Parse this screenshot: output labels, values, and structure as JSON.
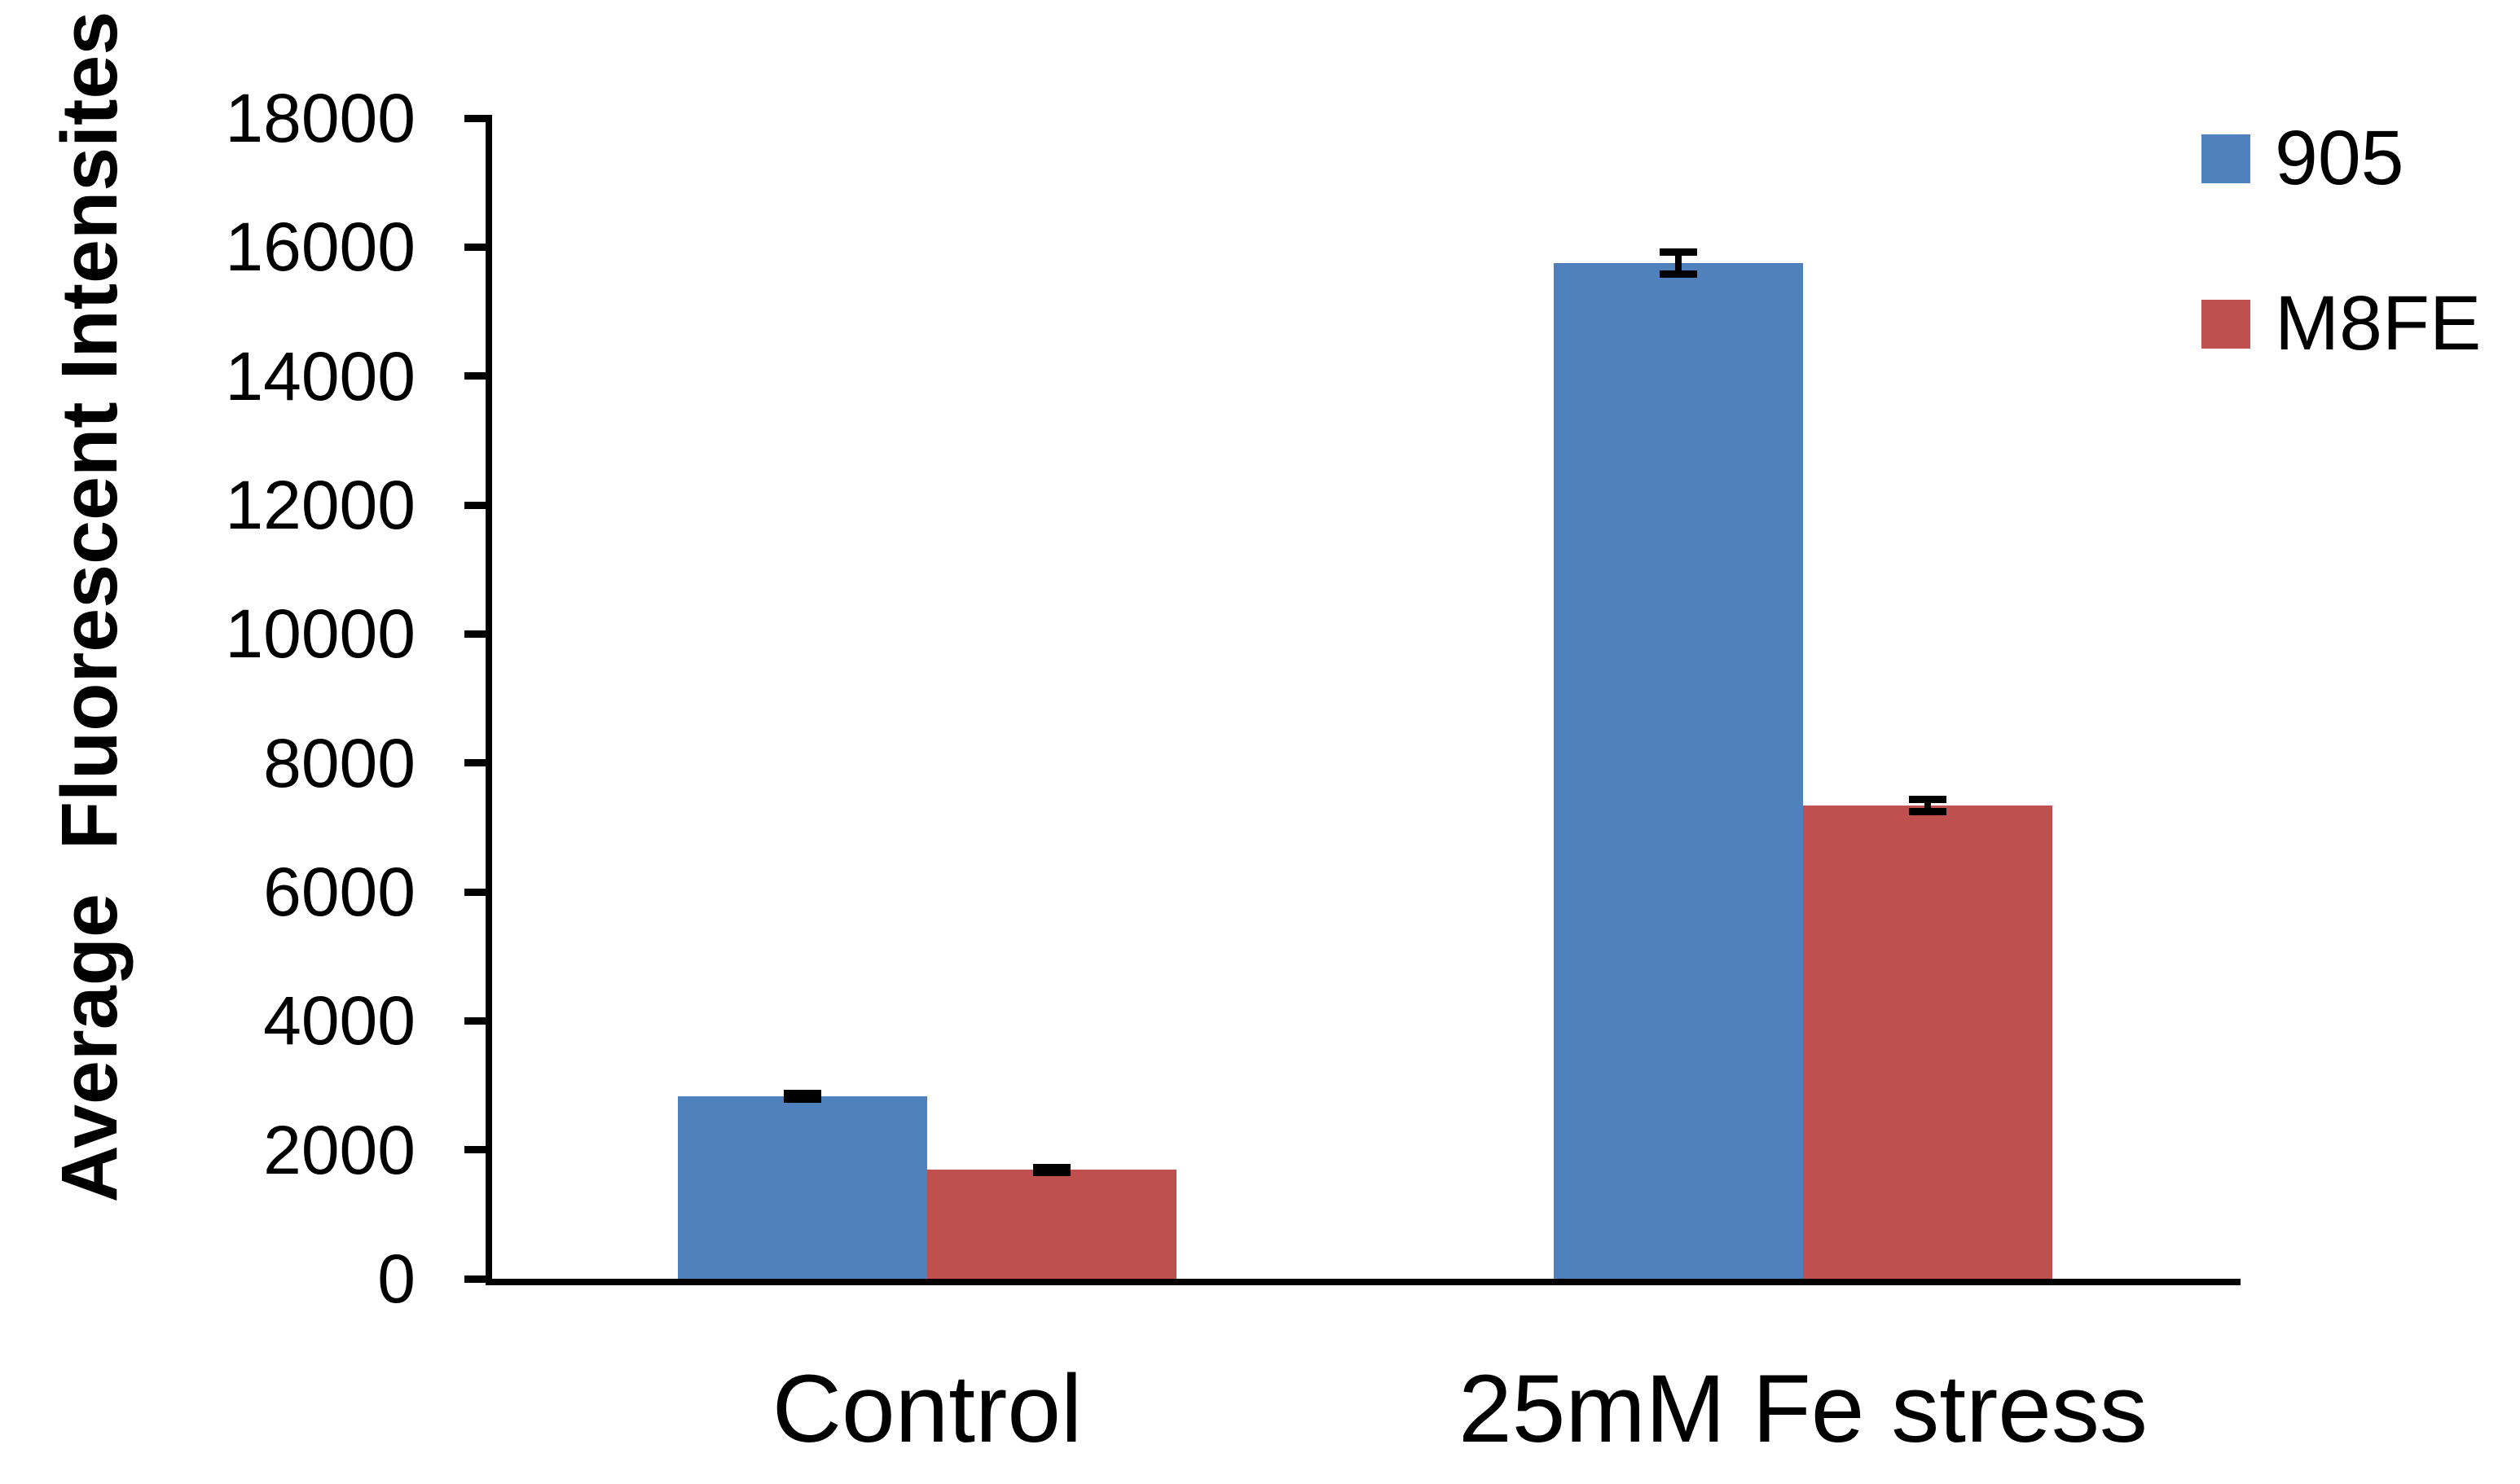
{
  "chart_data": {
    "type": "bar",
    "title": "",
    "ylabel": "Average  Fluorescent Intensites",
    "xlabel": "",
    "categories": [
      "Control",
      "25mM Fe stress"
    ],
    "series": [
      {
        "name": "905",
        "color": "#4F81BD",
        "values": [
          2830,
          15750
        ],
        "errors": [
          50,
          175
        ]
      },
      {
        "name": "M8FE",
        "color": "#C0504D",
        "values": [
          1690,
          7340
        ],
        "errors": [
          40,
          95
        ]
      }
    ],
    "ylim": [
      0,
      18000
    ],
    "ytick_step": 2000,
    "ytick_labels": [
      "0",
      "2000",
      "4000",
      "6000",
      "8000",
      "10000",
      "12000",
      "14000",
      "16000",
      "18000"
    ],
    "grid": false,
    "error_bars": true,
    "legend_position": "top-right"
  },
  "colors": {
    "background": "#FFFFFF",
    "axis": "#000000",
    "text": "#000000"
  }
}
